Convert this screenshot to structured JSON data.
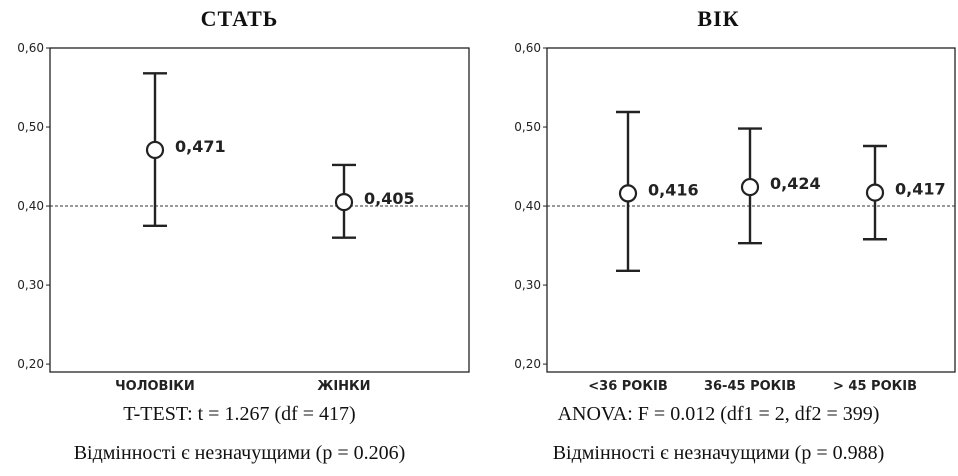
{
  "chart_data": [
    {
      "type": "errorbar",
      "title": "СТАТЬ",
      "categories": [
        "ЧОЛОВІКИ",
        "ЖІНКИ"
      ],
      "values": [
        0.471,
        0.405
      ],
      "value_labels": [
        "0,471",
        "0,405"
      ],
      "error_low": [
        0.375,
        0.36
      ],
      "error_high": [
        0.568,
        0.452
      ],
      "reference_line": 0.4,
      "ylim": [
        0.19,
        0.6
      ],
      "yticks": [
        0.2,
        0.3,
        0.4,
        0.5,
        0.6
      ],
      "ytick_labels": [
        "0,20",
        "0,30",
        "0,40",
        "0,50",
        "0,60"
      ],
      "stats_line1": "T-TEST: t = 1.267 (df = 417)",
      "stats_line2": "Відмінності є незначущими (p = 0.206)"
    },
    {
      "type": "errorbar",
      "title": "ВІК",
      "categories": [
        "<36 РОКІВ",
        "36-45 РОКІВ",
        "> 45 РОКІВ"
      ],
      "values": [
        0.416,
        0.424,
        0.417
      ],
      "value_labels": [
        "0,416",
        "0,424",
        "0,417"
      ],
      "error_low": [
        0.318,
        0.353,
        0.358
      ],
      "error_high": [
        0.519,
        0.498,
        0.476
      ],
      "reference_line": 0.4,
      "ylim": [
        0.19,
        0.6
      ],
      "yticks": [
        0.2,
        0.3,
        0.4,
        0.5,
        0.6
      ],
      "ytick_labels": [
        "0,20",
        "0,30",
        "0,40",
        "0,50",
        "0,60"
      ],
      "stats_line1": "ANOVA: F = 0.012 (df1 = 2, df2 = 399)",
      "stats_line2": "Відмінності є незначущими (p = 0.988)"
    }
  ]
}
